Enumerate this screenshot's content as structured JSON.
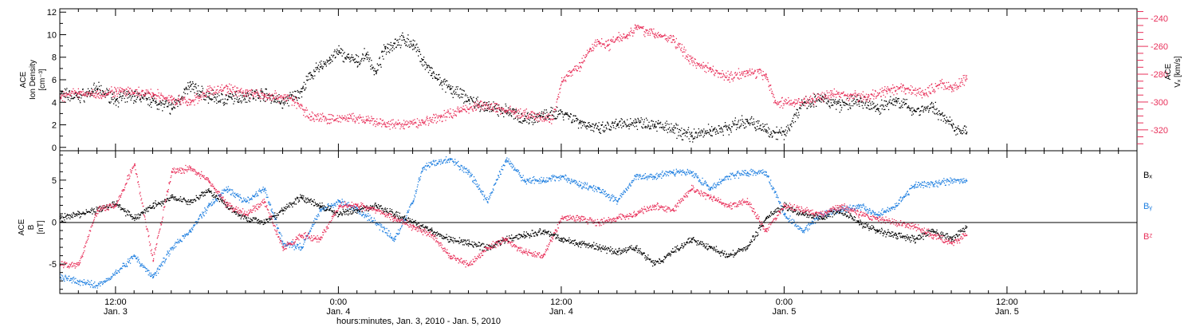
{
  "x_axis": {
    "title": "hours:minutes, Jan.  3, 2010 - Jan.  5, 2010",
    "range_hours": [
      9,
      67
    ],
    "ticks": [
      {
        "hour": 12,
        "time": "12:00",
        "date": "Jan. 3"
      },
      {
        "hour": 24,
        "time": "0:00",
        "date": "Jan. 4"
      },
      {
        "hour": 36,
        "time": "12:00",
        "date": "Jan. 4"
      },
      {
        "hour": 48,
        "time": "0:00",
        "date": "Jan. 5"
      },
      {
        "hour": 60,
        "time": "12:00",
        "date": "Jan. 5"
      }
    ],
    "minor_tick_hours": 1
  },
  "top_panel": {
    "left_label": {
      "line1": "ACE",
      "line2": "Ion Density",
      "unit": "[cm⁻³]"
    },
    "right_label": {
      "line1": "ACE",
      "line2": "Vₓ [km/s]"
    },
    "left_ticks": [
      "0",
      "2",
      "4",
      "6",
      "8",
      "10",
      "12"
    ],
    "right_ticks": [
      "-240",
      "-260",
      "-280",
      "-300",
      "-320"
    ]
  },
  "bottom_panel": {
    "left_label": {
      "line1": "ACE",
      "line2": "B",
      "unit": "[nT]"
    },
    "left_ticks": [
      "5",
      "0",
      "-5"
    ],
    "legend": [
      {
        "text": "Bₓ",
        "color": "#000000"
      },
      {
        "text": "Bᵧ",
        "color": "#1f7fe0"
      },
      {
        "text": "Bᶻ",
        "color": "#e8305a"
      }
    ]
  },
  "chart_data": [
    {
      "type": "scatter",
      "panel": "top",
      "xlabel": "hours:minutes, Jan.  3, 2010 - Jan.  5, 2010",
      "xlim": [
        9,
        67
      ],
      "ylabel_left": "ACE Ion Density [cm⁻³]",
      "ylim_left": [
        -0.3,
        12.3
      ],
      "ylabel_right": "ACE Vₓ [km/s]",
      "ylim_right": [
        -335,
        -233
      ],
      "grid": false,
      "series": [
        {
          "name": "Ion Density",
          "axis": "left",
          "color": "#000000",
          "x": [
            9.0,
            10.0,
            11.0,
            12.0,
            13.0,
            14.0,
            15.0,
            16.0,
            17.0,
            18.0,
            19.0,
            20.0,
            21.0,
            22.0,
            22.5,
            23.0,
            23.5,
            24.0,
            24.5,
            25.0,
            25.5,
            26.0,
            26.5,
            27.0,
            27.5,
            28.0,
            28.5,
            29.0,
            29.5,
            30.0,
            31.0,
            32.0,
            33.0,
            34.0,
            35.0,
            36.0,
            37.0,
            38.0,
            39.0,
            40.0,
            41.0,
            42.0,
            43.0,
            44.0,
            45.0,
            46.0,
            47.0,
            48.0,
            49.0,
            50.0,
            51.0,
            52.0,
            53.0,
            54.0,
            55.0,
            56.0,
            57.0,
            57.8
          ],
          "y": [
            4.8,
            4.5,
            5.2,
            4.3,
            4.6,
            4.2,
            3.5,
            5.5,
            4.5,
            4.3,
            4.6,
            4.8,
            4.0,
            5.0,
            6.5,
            7.2,
            7.8,
            8.5,
            8.0,
            7.6,
            8.3,
            6.6,
            8.8,
            9.3,
            9.6,
            9.2,
            7.8,
            6.6,
            5.8,
            5.2,
            4.3,
            3.5,
            3.3,
            2.6,
            2.8,
            3.2,
            2.3,
            1.6,
            2.0,
            2.3,
            2.1,
            1.6,
            1.1,
            1.5,
            1.8,
            2.4,
            1.6,
            1.2,
            4.0,
            4.3,
            3.8,
            4.1,
            3.5,
            4.2,
            3.3,
            3.6,
            2.0,
            1.4
          ]
        },
        {
          "name": "Vₓ",
          "axis": "right",
          "color": "#e8305a",
          "x": [
            9.0,
            10.0,
            11.0,
            12.0,
            13.0,
            14.0,
            15.0,
            16.0,
            17.0,
            18.0,
            19.0,
            20.0,
            21.0,
            21.5,
            22.5,
            23.5,
            24.5,
            25.5,
            26.5,
            27.5,
            28.5,
            29.5,
            30.5,
            31.5,
            32.5,
            33.5,
            34.5,
            35.5,
            36.0,
            36.5,
            37.0,
            37.5,
            38.0,
            38.5,
            39.0,
            39.5,
            40.0,
            41.0,
            42.0,
            43.0,
            44.0,
            45.0,
            46.0,
            47.0,
            47.5,
            48.5,
            49.5,
            50.5,
            51.5,
            52.5,
            53.5,
            54.5,
            55.5,
            56.5,
            57.0,
            57.8
          ],
          "y": [
            -296,
            -293,
            -294,
            -292,
            -293,
            -294,
            -298,
            -300,
            -292,
            -290,
            -293,
            -295,
            -296,
            -298,
            -310,
            -312,
            -311,
            -313,
            -316,
            -316,
            -314,
            -310,
            -306,
            -302,
            -304,
            -307,
            -310,
            -312,
            -285,
            -278,
            -274,
            -262,
            -256,
            -259,
            -253,
            -252,
            -246,
            -251,
            -255,
            -270,
            -276,
            -282,
            -278,
            -280,
            -300,
            -300,
            -298,
            -294,
            -295,
            -296,
            -292,
            -290,
            -294,
            -286,
            -290,
            -283
          ]
        }
      ]
    },
    {
      "type": "scatter",
      "panel": "bottom",
      "xlabel": "hours:minutes, Jan.  3, 2010 - Jan.  5, 2010",
      "xlim": [
        9,
        67
      ],
      "ylabel": "ACE B [nT]",
      "ylim": [
        -8.5,
        8.5
      ],
      "grid": false,
      "series": [
        {
          "name": "Bₓ",
          "color": "#000000",
          "x": [
            9.0,
            10.0,
            11.0,
            12.0,
            13.0,
            14.0,
            15.0,
            16.0,
            17.0,
            18.0,
            19.0,
            20.0,
            21.0,
            22.0,
            23.0,
            24.0,
            25.0,
            26.0,
            27.0,
            28.0,
            29.0,
            30.0,
            31.0,
            32.0,
            33.0,
            34.0,
            35.0,
            36.0,
            37.0,
            38.0,
            39.0,
            40.0,
            41.0,
            42.0,
            43.0,
            44.0,
            45.0,
            46.0,
            47.0,
            48.0,
            49.0,
            50.0,
            51.0,
            52.0,
            53.0,
            54.0,
            55.0,
            56.0,
            57.0,
            57.8
          ],
          "y": [
            0.5,
            1.0,
            1.5,
            2.2,
            0.5,
            2.0,
            3.0,
            2.5,
            3.8,
            2.0,
            0.5,
            0.0,
            1.5,
            3.0,
            2.0,
            1.0,
            1.5,
            2.0,
            1.0,
            0.0,
            -1.0,
            -2.0,
            -2.5,
            -3.0,
            -2.0,
            -1.5,
            -1.0,
            -2.0,
            -2.5,
            -3.0,
            -3.5,
            -3.0,
            -5.0,
            -3.5,
            -2.0,
            -3.0,
            -4.0,
            -3.0,
            0.5,
            2.0,
            1.0,
            0.5,
            1.5,
            0.0,
            -1.0,
            -1.5,
            -2.0,
            -1.0,
            -2.0,
            -0.5
          ]
        },
        {
          "name": "Bᵧ",
          "color": "#1f7fe0",
          "x": [
            9.0,
            10.0,
            11.0,
            12.0,
            13.0,
            14.0,
            15.0,
            16.0,
            17.0,
            18.0,
            19.0,
            20.0,
            21.0,
            22.0,
            23.0,
            24.0,
            25.0,
            26.0,
            27.0,
            28.0,
            28.5,
            29.0,
            30.0,
            31.0,
            32.0,
            33.0,
            34.0,
            35.0,
            36.0,
            37.0,
            38.0,
            39.0,
            40.0,
            41.0,
            42.0,
            43.0,
            44.0,
            45.0,
            46.0,
            47.0,
            48.0,
            49.0,
            50.0,
            51.0,
            52.0,
            53.0,
            54.0,
            55.0,
            56.0,
            57.0,
            57.8
          ],
          "y": [
            -6.5,
            -7.0,
            -7.5,
            -6.0,
            -4.0,
            -6.5,
            -3.0,
            -1.0,
            2.0,
            4.0,
            2.5,
            4.0,
            -2.5,
            -3.0,
            1.5,
            2.5,
            1.5,
            0.0,
            -2.0,
            2.5,
            6.5,
            7.0,
            7.5,
            6.0,
            2.5,
            7.5,
            5.0,
            5.0,
            5.5,
            4.5,
            4.0,
            2.5,
            5.5,
            5.5,
            6.0,
            6.0,
            4.0,
            5.5,
            6.0,
            6.0,
            1.0,
            -1.0,
            1.0,
            1.5,
            2.0,
            1.0,
            2.0,
            4.5,
            4.5,
            5.0,
            5.0
          ]
        },
        {
          "name": "Bᶻ",
          "color": "#e8305a",
          "x": [
            9.0,
            10.0,
            11.0,
            12.0,
            13.0,
            14.0,
            15.0,
            16.0,
            17.0,
            18.0,
            19.0,
            20.0,
            21.0,
            22.0,
            23.0,
            24.0,
            25.0,
            26.0,
            27.0,
            28.0,
            29.0,
            30.0,
            31.0,
            32.0,
            33.0,
            34.0,
            35.0,
            36.0,
            37.0,
            38.0,
            39.0,
            40.0,
            41.0,
            42.0,
            43.0,
            44.0,
            45.0,
            46.0,
            47.0,
            48.0,
            49.0,
            50.0,
            51.0,
            52.0,
            53.0,
            54.0,
            55.0,
            56.0,
            57.0,
            57.8
          ],
          "y": [
            -5.0,
            -5.0,
            1.5,
            2.0,
            7.0,
            -4.5,
            6.0,
            6.5,
            5.0,
            2.0,
            1.0,
            2.5,
            -3.0,
            -1.5,
            -2.0,
            2.0,
            2.0,
            1.5,
            0.5,
            -0.5,
            -1.5,
            -4.0,
            -5.0,
            -3.0,
            -2.0,
            -3.5,
            -4.0,
            0.5,
            0.5,
            0.0,
            0.5,
            1.0,
            2.0,
            1.5,
            4.0,
            3.0,
            2.0,
            2.5,
            -1.0,
            2.0,
            1.5,
            1.0,
            2.0,
            1.0,
            0.5,
            0.0,
            -0.5,
            -1.5,
            -2.5,
            -1.5
          ]
        }
      ]
    }
  ]
}
